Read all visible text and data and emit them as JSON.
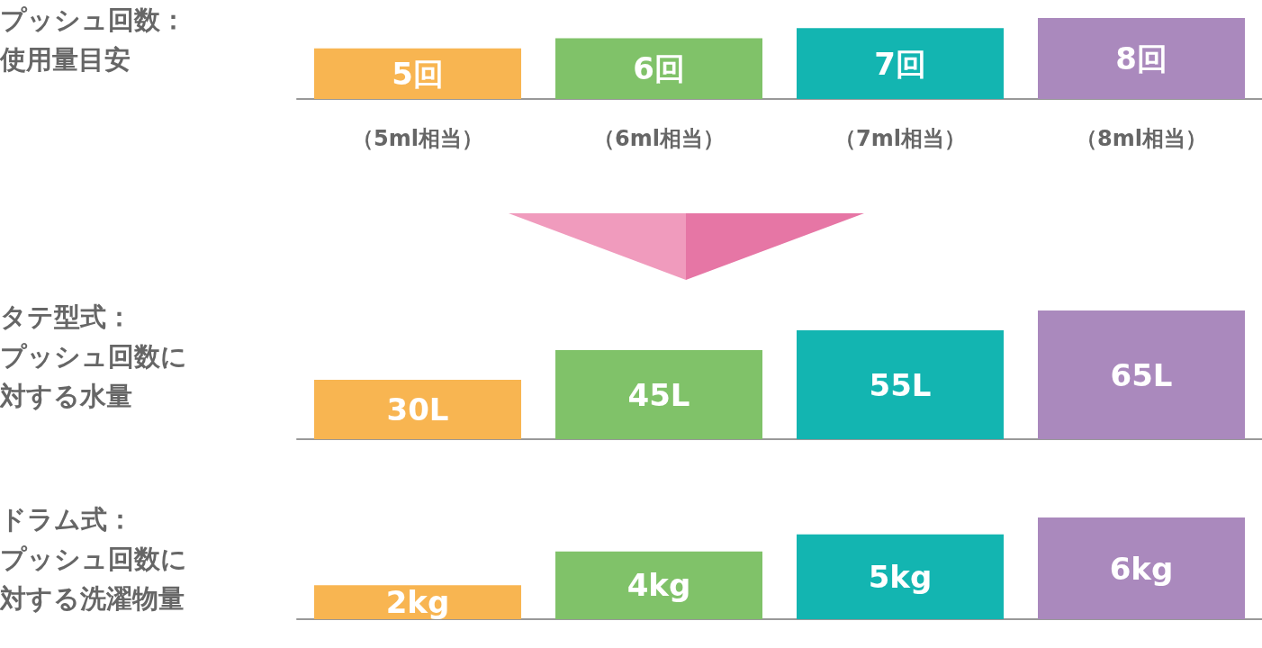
{
  "chart_data": [
    {
      "type": "bar",
      "title": "プッシュ回数：使用量目安",
      "categories": [
        "（5ml相当）",
        "（6ml相当）",
        "（7ml相当）",
        "（8ml相当）"
      ],
      "values": [
        5,
        6,
        7,
        8
      ],
      "value_labels": [
        "5回",
        "6回",
        "7回",
        "8回"
      ],
      "colors": [
        "#f8b551",
        "#80c269",
        "#13b5b1",
        "#aa89bd"
      ]
    },
    {
      "type": "bar",
      "title": "タテ型式：プッシュ回数に対する水量",
      "categories": [
        null,
        null,
        null,
        null
      ],
      "values": [
        30,
        45,
        55,
        65
      ],
      "value_labels": [
        "30L",
        "45L",
        "55L",
        "65L"
      ],
      "colors": [
        "#f8b551",
        "#80c269",
        "#13b5b1",
        "#aa89bd"
      ]
    },
    {
      "type": "bar",
      "title": "ドラム式：プッシュ回数に対する洗濯物量",
      "categories": [
        null,
        null,
        null,
        null
      ],
      "values": [
        2,
        4,
        5,
        6
      ],
      "value_labels": [
        "2kg",
        "4kg",
        "5kg",
        "6kg"
      ],
      "colors": [
        "#f8b551",
        "#80c269",
        "#13b5b1",
        "#aa89bd"
      ]
    }
  ]
}
